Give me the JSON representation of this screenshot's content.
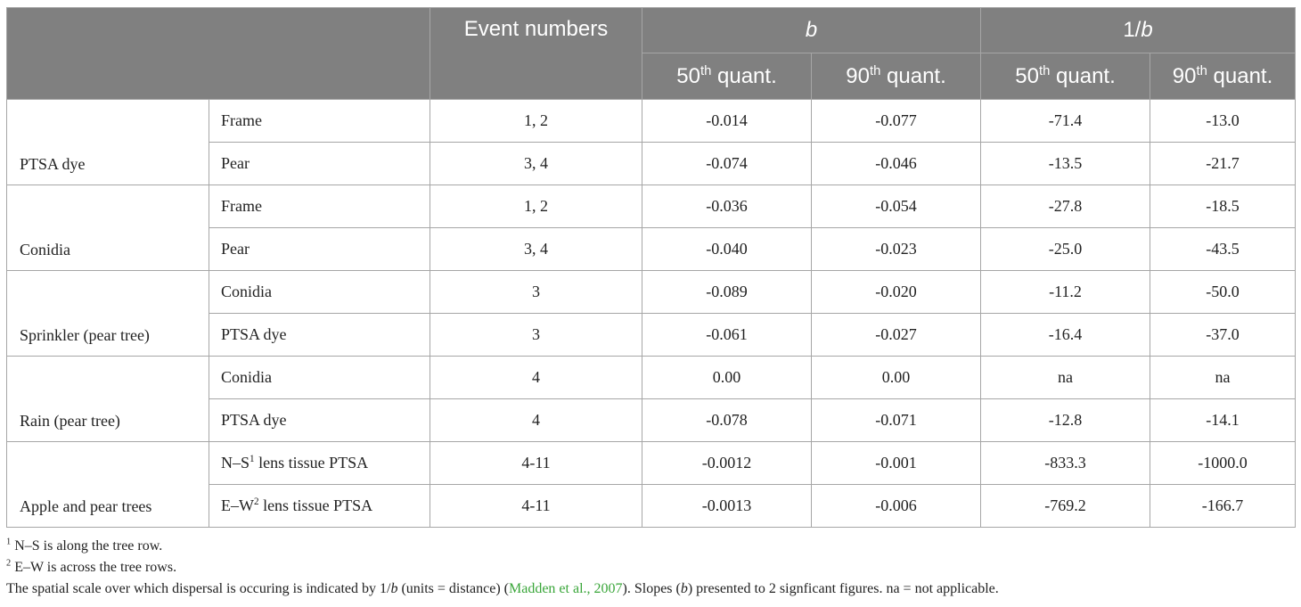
{
  "header": {
    "event_numbers": "Event numbers",
    "b": "b",
    "inv_prefix": "1/",
    "inv_var": "b",
    "quant_num": "50",
    "quant_num2": "90",
    "quant_sup": "th",
    "quant_label": " quant."
  },
  "groups": [
    {
      "name": "PTSA dye",
      "rows": [
        {
          "sub": "Frame",
          "events": "1, 2",
          "b50": "-0.014",
          "b90": "-0.077",
          "i50": "-71.4",
          "i90": "-13.0"
        },
        {
          "sub": "Pear",
          "events": "3, 4",
          "b50": "-0.074",
          "b90": "-0.046",
          "i50": "-13.5",
          "i90": "-21.7"
        }
      ]
    },
    {
      "name": "Conidia",
      "rows": [
        {
          "sub": "Frame",
          "events": "1, 2",
          "b50": "-0.036",
          "b90": "-0.054",
          "i50": "-27.8",
          "i90": "-18.5"
        },
        {
          "sub": "Pear",
          "events": "3, 4",
          "b50": "-0.040",
          "b90": "-0.023",
          "i50": "-25.0",
          "i90": "-43.5"
        }
      ]
    },
    {
      "name": "Sprinkler (pear tree)",
      "rows": [
        {
          "sub": "Conidia",
          "events": "3",
          "b50": "-0.089",
          "b90": "-0.020",
          "i50": "-11.2",
          "i90": "-50.0"
        },
        {
          "sub": "PTSA dye",
          "events": "3",
          "b50": "-0.061",
          "b90": "-0.027",
          "i50": "-16.4",
          "i90": "-37.0"
        }
      ]
    },
    {
      "name": "Rain (pear tree)",
      "rows": [
        {
          "sub": "Conidia",
          "events": "4",
          "b50": "0.00",
          "b90": "0.00",
          "i50": "na",
          "i90": "na"
        },
        {
          "sub": "PTSA dye",
          "events": "4",
          "b50": "-0.078",
          "b90": "-0.071",
          "i50": "-12.8",
          "i90": "-14.1"
        }
      ]
    },
    {
      "name": "Apple and pear trees",
      "rows": [
        {
          "sub_pre": "N–S",
          "sub_sup": "1",
          "sub_post": " lens tissue PTSA",
          "events": "4-11",
          "b50": "-0.0012",
          "b90": "-0.001",
          "i50": "-833.3",
          "i90": "-1000.0"
        },
        {
          "sub_pre": "E–W",
          "sub_sup": "2",
          "sub_post": " lens tissue PTSA",
          "events": "4-11",
          "b50": "-0.0013",
          "b90": "-0.006",
          "i50": "-769.2",
          "i90": "-166.7"
        }
      ]
    }
  ],
  "notes": {
    "n1_sup": "1",
    "n1_text": " N–S is along the tree row.",
    "n2_sup": "2",
    "n2_text": " E–W is across the tree rows.",
    "n3_a": "The spatial scale over which dispersal is occuring is indicated by 1/",
    "n3_b_var": "b",
    "n3_c": " (units = distance) (",
    "n3_link": "Madden et al., 2007",
    "n3_d": "). Slopes (",
    "n3_e_var": "b",
    "n3_f": ") presented to 2 signficant figures. na = not applicable."
  },
  "colors": {
    "header_bg": "#808080",
    "header_text": "#ffffff",
    "border": "#a6a6a6",
    "link": "#3aa63a"
  }
}
